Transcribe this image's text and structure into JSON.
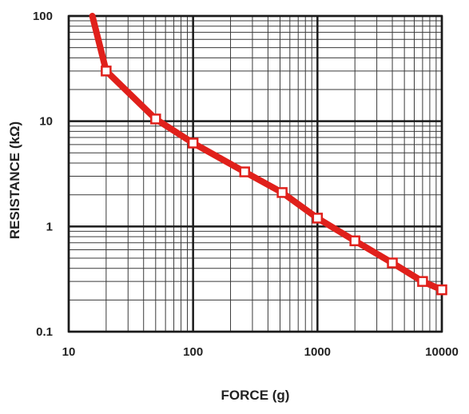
{
  "chart_data": {
    "type": "line",
    "xlabel": "FORCE (g)",
    "ylabel": "RESISTANCE (kΩ)",
    "x_scale": "log",
    "y_scale": "log",
    "xlim": [
      10,
      10000
    ],
    "ylim": [
      0.1,
      100
    ],
    "x_tick_labels": [
      "10",
      "100",
      "1000",
      "10000"
    ],
    "y_tick_labels": [
      "0.1",
      "1",
      "10",
      "100"
    ],
    "grid": true,
    "line_color": "#e0201b",
    "marker": "open-square",
    "series": [
      {
        "x": [
          15.5,
          20,
          50,
          100,
          260,
          520,
          1000,
          2000,
          4000,
          7000,
          10000
        ],
        "y": [
          100,
          30,
          10.5,
          6.2,
          3.3,
          2.1,
          1.2,
          0.73,
          0.45,
          0.3,
          0.25
        ],
        "markers": [
          false,
          true,
          true,
          true,
          true,
          true,
          true,
          true,
          true,
          true,
          true
        ]
      }
    ]
  }
}
